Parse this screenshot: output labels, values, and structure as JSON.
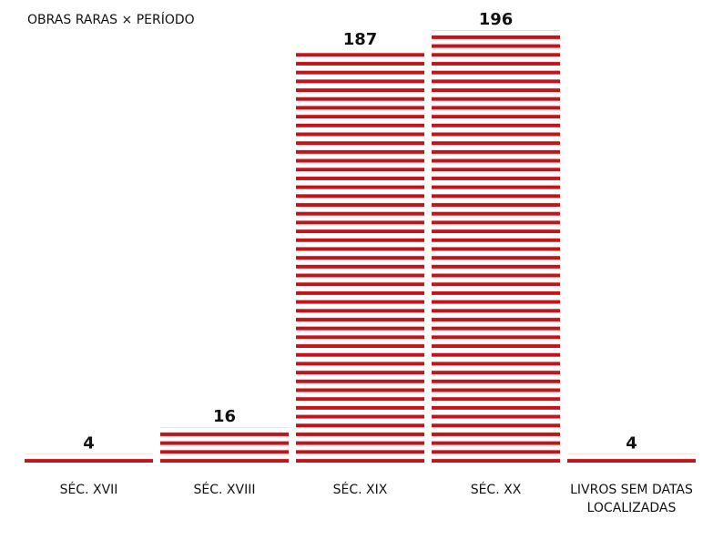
{
  "chart_data": {
    "type": "bar",
    "title": "OBRAS RARAS × PERÍODO",
    "categories": [
      "SÉC. XVII",
      "SÉC. XVIII",
      "SÉC. XIX",
      "SÉC. XX",
      "LIVROS SEM DATAS LOCALIZADAS"
    ],
    "values": [
      4,
      16,
      187,
      196,
      4
    ],
    "color": "#c3141b"
  }
}
